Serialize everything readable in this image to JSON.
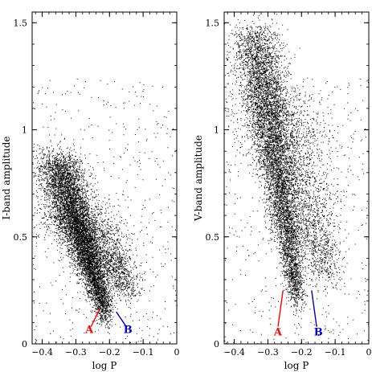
{
  "chart_data": [
    {
      "type": "scatter",
      "title": "",
      "xlabel": "log P",
      "ylabel": "I-band amplitude",
      "xlim": [
        -0.43,
        0.0
      ],
      "ylim": [
        0.0,
        1.55
      ],
      "xticks": [
        -0.4,
        -0.3,
        -0.2,
        -0.1,
        0
      ],
      "xtick_labels": [
        "−0.4",
        "−0.3",
        "−0.2",
        "−0.1",
        "0"
      ],
      "yticks": [
        0,
        0.5,
        1,
        1.5
      ],
      "ytick_labels": [
        "0",
        "0.5",
        "1",
        "1.5"
      ],
      "grid": false,
      "point_color": "#000000",
      "density_model": [
        {
          "component": "main sequence",
          "x_top": -0.36,
          "y_top": 0.86,
          "x_bottom": -0.21,
          "y_bottom": 0.14,
          "x_spread": 0.028,
          "weight": 0.75
        },
        {
          "component": "diffuse tail",
          "x_top": -0.32,
          "y_top": 0.62,
          "x_bottom": -0.14,
          "y_bottom": 0.25,
          "x_spread": 0.05,
          "weight": 0.25
        }
      ],
      "annotations": [
        {
          "label": "A",
          "color": "#ff0000",
          "line": [
            [
              -0.255,
              0.08
            ],
            [
              -0.23,
              0.16
            ]
          ],
          "text_at": [
            -0.26,
            0.05
          ]
        },
        {
          "label": "B",
          "color": "#0000cc",
          "line": [
            [
              -0.18,
              0.15
            ],
            [
              -0.15,
              0.08
            ]
          ],
          "text_at": [
            -0.145,
            0.05
          ]
        }
      ]
    },
    {
      "type": "scatter",
      "title": "",
      "xlabel": "log P",
      "ylabel": "V-band amplitude",
      "xlim": [
        -0.43,
        0.0
      ],
      "ylim": [
        0.0,
        1.55
      ],
      "xticks": [
        -0.4,
        -0.3,
        -0.2,
        -0.1,
        0
      ],
      "xtick_labels": [
        "−0.4",
        "−0.3",
        "−0.2",
        "−0.1",
        "0"
      ],
      "yticks": [
        0,
        0.5,
        1,
        1.5
      ],
      "ytick_labels": [
        "0",
        "0.5",
        "1",
        "1.5"
      ],
      "grid": false,
      "point_color": "#000000",
      "density_model": [
        {
          "component": "main sequence",
          "x_top": -0.34,
          "y_top": 1.45,
          "x_bottom": -0.21,
          "y_bottom": 0.2,
          "x_spread": 0.03,
          "weight": 0.7
        },
        {
          "component": "diffuse tail",
          "x_top": -0.3,
          "y_top": 1.2,
          "x_bottom": -0.12,
          "y_bottom": 0.3,
          "x_spread": 0.06,
          "weight": 0.3
        }
      ],
      "annotations": [
        {
          "label": "A",
          "color": "#ff0000",
          "line": [
            [
              -0.27,
              0.08
            ],
            [
              -0.255,
              0.25
            ]
          ],
          "text_at": [
            -0.27,
            0.04
          ]
        },
        {
          "label": "B",
          "color": "#0000cc",
          "line": [
            [
              -0.17,
              0.25
            ],
            [
              -0.155,
              0.08
            ]
          ],
          "text_at": [
            -0.15,
            0.04
          ]
        }
      ]
    }
  ]
}
